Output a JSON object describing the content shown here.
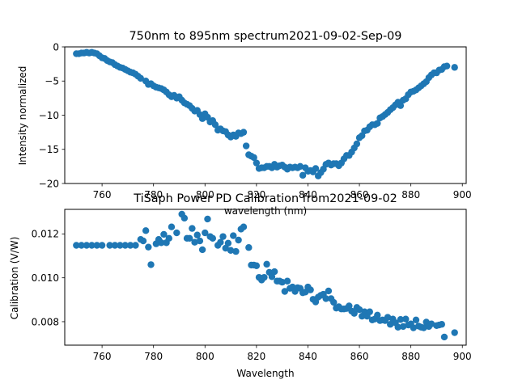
{
  "colors": {
    "marker": "#1f77b4",
    "axes": "#000000",
    "background": "#ffffff"
  },
  "chart_data": [
    {
      "type": "scatter",
      "title": "750nm to 895nm spectrum2021-09-02-Sep-09",
      "xlabel": "wavelength (nm)",
      "ylabel": "Intensity normalized",
      "xlim": [
        745.5,
        901.5
      ],
      "ylim": [
        -20,
        0
      ],
      "grid": false,
      "xticks": [
        760,
        780,
        800,
        820,
        840,
        860,
        880,
        900
      ],
      "yticks": [
        -20,
        -15,
        -10,
        -5,
        0
      ],
      "ytick_labels": [
        "−20",
        "−15",
        "−10",
        "−5",
        "0"
      ],
      "series": [
        {
          "x": [
            750,
            751,
            752,
            753,
            754,
            755,
            756,
            757,
            758,
            759,
            760,
            761,
            762,
            763,
            764,
            765,
            766,
            767,
            768,
            769,
            770,
            771,
            772,
            773,
            774,
            775,
            777,
            778,
            779,
            780,
            781,
            782,
            783,
            784,
            785,
            786,
            787,
            788,
            789,
            790,
            791,
            792,
            793,
            794,
            795,
            796,
            797,
            798,
            799,
            800,
            801,
            802,
            803,
            804,
            805,
            806,
            807,
            808,
            809,
            810,
            811,
            812,
            813,
            814,
            815,
            816,
            817,
            818,
            819,
            820,
            821,
            822,
            823,
            824,
            825,
            826,
            827,
            828,
            829,
            830,
            831,
            832,
            833,
            834,
            835,
            836,
            837,
            838,
            839,
            840,
            841,
            842,
            843,
            844,
            845,
            846,
            847,
            848,
            849,
            850,
            851,
            852,
            853,
            854,
            855,
            856,
            857,
            858,
            859,
            860,
            861,
            862,
            863,
            864,
            865,
            866,
            867,
            868,
            869,
            870,
            871,
            872,
            873,
            874,
            875,
            876,
            877,
            878,
            879,
            880,
            881,
            882,
            883,
            884,
            885,
            886,
            887,
            888,
            889,
            890,
            891,
            892,
            893,
            894,
            897
          ],
          "y": [
            -1.0,
            -1.0,
            -0.9,
            -0.9,
            -0.8,
            -0.9,
            -0.8,
            -0.9,
            -1.0,
            -1.3,
            -1.6,
            -1.7,
            -2.0,
            -2.2,
            -2.3,
            -2.6,
            -2.8,
            -3.0,
            -3.1,
            -3.3,
            -3.5,
            -3.7,
            -3.8,
            -4.0,
            -4.3,
            -4.6,
            -5.0,
            -5.5,
            -5.4,
            -5.7,
            -5.9,
            -6.0,
            -6.1,
            -6.3,
            -6.6,
            -7.0,
            -7.3,
            -7.1,
            -7.5,
            -7.3,
            -7.8,
            -8.2,
            -8.4,
            -8.6,
            -9.0,
            -9.4,
            -9.3,
            -9.9,
            -10.5,
            -9.8,
            -10.3,
            -11.0,
            -10.8,
            -11.4,
            -12.2,
            -12.0,
            -12.3,
            -12.4,
            -12.9,
            -13.2,
            -12.9,
            -13.1,
            -12.6,
            -12.7,
            -12.5,
            -14.5,
            -15.8,
            -16.0,
            -16.2,
            -17.0,
            -17.8,
            -17.7,
            -17.7,
            -17.5,
            -17.5,
            -17.7,
            -17.2,
            -17.6,
            -17.4,
            -17.3,
            -17.6,
            -17.9,
            -17.6,
            -17.7,
            -17.6,
            -17.7,
            -17.5,
            -18.8,
            -17.7,
            -18.2,
            -18.1,
            -18.3,
            -17.8,
            -18.9,
            -18.4,
            -17.9,
            -17.2,
            -17.0,
            -17.3,
            -17.1,
            -17.1,
            -17.4,
            -17.0,
            -16.4,
            -15.9,
            -15.9,
            -15.4,
            -14.8,
            -14.2,
            -13.3,
            -13.0,
            -12.3,
            -12.2,
            -11.7,
            -11.4,
            -11.4,
            -11.2,
            -10.4,
            -10.2,
            -9.9,
            -9.6,
            -9.2,
            -8.9,
            -8.5,
            -8.1,
            -8.6,
            -7.8,
            -7.6,
            -7.0,
            -6.6,
            -6.5,
            -6.3,
            -6.0,
            -5.7,
            -5.4,
            -5.1,
            -4.5,
            -4.1,
            -3.8,
            -3.8,
            -3.4,
            -3.3,
            -2.9,
            -2.8,
            -3.0
          ]
        }
      ]
    },
    {
      "type": "scatter",
      "title": "TiSaph Power PD Calibration from2021-09-02",
      "xlabel": "Wavelength",
      "ylabel": "Calibration (V/W)",
      "xlim": [
        745.5,
        901.5
      ],
      "ylim": [
        0.00693,
        0.01312
      ],
      "grid": false,
      "xticks": [
        760,
        780,
        800,
        820,
        840,
        860,
        880,
        900
      ],
      "yticks": [
        0.008,
        0.01,
        0.012
      ],
      "ytick_labels": [
        "0.008",
        "0.010",
        "0.012"
      ],
      "series": [
        {
          "x": [
            750,
            752,
            754,
            756,
            758,
            760,
            763,
            765,
            767,
            769,
            771,
            773,
            775,
            776,
            777,
            778,
            779,
            781,
            782,
            783,
            784,
            785,
            786,
            787,
            789,
            791,
            792,
            793,
            794,
            795,
            796,
            797,
            798,
            799,
            800,
            801,
            802,
            803,
            805,
            806,
            807,
            808,
            809,
            810,
            811,
            812,
            813,
            814,
            815,
            817,
            818,
            819,
            820,
            821,
            822,
            823,
            824,
            825,
            826,
            827,
            828,
            829,
            830,
            831,
            832,
            833,
            834,
            835,
            836,
            837,
            838,
            839,
            840,
            841,
            842,
            843,
            844,
            845,
            846,
            847,
            848,
            849,
            850,
            851,
            852,
            853,
            854,
            855,
            856,
            857,
            858,
            859,
            860,
            861,
            862,
            863,
            864,
            865,
            866,
            867,
            868,
            869,
            870,
            871,
            872,
            873,
            874,
            875,
            876,
            877,
            878,
            879,
            880,
            881,
            882,
            883,
            884,
            885,
            886,
            887,
            888,
            890,
            891,
            892,
            893,
            897
          ],
          "y": [
            0.01148,
            0.01148,
            0.01148,
            0.01148,
            0.01148,
            0.01148,
            0.01148,
            0.01148,
            0.01148,
            0.01148,
            0.01148,
            0.01148,
            0.01175,
            0.01168,
            0.01215,
            0.0114,
            0.0106,
            0.01155,
            0.01175,
            0.0116,
            0.01198,
            0.0116,
            0.0118,
            0.01232,
            0.01205,
            0.0129,
            0.01272,
            0.0118,
            0.0118,
            0.01225,
            0.01162,
            0.01195,
            0.01168,
            0.01128,
            0.01205,
            0.01268,
            0.01188,
            0.0118,
            0.01148,
            0.01162,
            0.01188,
            0.01135,
            0.01158,
            0.01125,
            0.01192,
            0.0112,
            0.01172,
            0.01222,
            0.01232,
            0.01138,
            0.01058,
            0.01058,
            0.01055,
            0.01002,
            0.0099,
            0.01002,
            0.01062,
            0.01025,
            0.01005,
            0.01028,
            0.00985,
            0.00985,
            0.0098,
            0.00938,
            0.00985,
            0.00952,
            0.00958,
            0.00938,
            0.00955,
            0.00952,
            0.00932,
            0.00935,
            0.00958,
            0.00945,
            0.00902,
            0.0089,
            0.00912,
            0.0092,
            0.00925,
            0.00905,
            0.0094,
            0.00905,
            0.00888,
            0.00862,
            0.00868,
            0.00858,
            0.00858,
            0.0086,
            0.00872,
            0.00848,
            0.00838,
            0.00865,
            0.00855,
            0.00825,
            0.00845,
            0.00825,
            0.00845,
            0.00808,
            0.00812,
            0.0083,
            0.00805,
            0.00808,
            0.00805,
            0.0082,
            0.00788,
            0.00812,
            0.00795,
            0.00775,
            0.0081,
            0.00778,
            0.00812,
            0.00785,
            0.0079,
            0.00772,
            0.00808,
            0.0078,
            0.00775,
            0.00772,
            0.00798,
            0.00778,
            0.0079,
            0.00782,
            0.00785,
            0.00788,
            0.0073,
            0.0075
          ]
        }
      ]
    }
  ]
}
